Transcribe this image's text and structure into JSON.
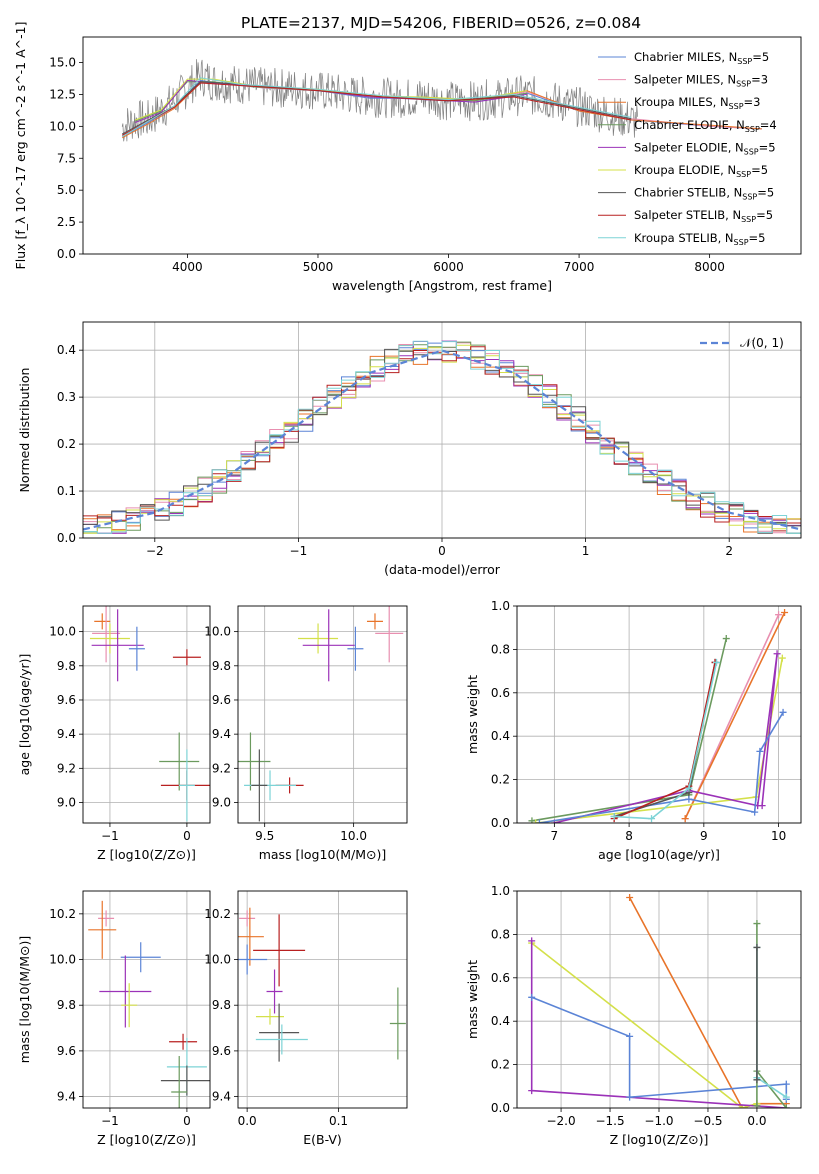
{
  "figure_title": "PLATE=2137, MJD=54206, FIBERID=0526, z=0.084",
  "chart_data": [
    {
      "id": "spectrum",
      "type": "line",
      "title": "PLATE=2137, MJD=54206, FIBERID=0526, z=0.084",
      "xlabel": "wavelength [Angstrom, rest frame]",
      "ylabel": "Flux [f_λ 10^-17 erg cm^-2 s^-1 A^-1]",
      "xlim": [
        3200,
        8700
      ],
      "ylim": [
        0,
        17
      ],
      "xticks": [
        "4000",
        "5000",
        "6000",
        "7000",
        "8000"
      ],
      "yticks": [
        "0.0",
        "2.5",
        "5.0",
        "7.5",
        "10.0",
        "12.5",
        "15.0"
      ],
      "grid": false,
      "legend_position": "top-right",
      "data_series": {
        "name": "data",
        "x": [
          3500,
          3600,
          3700,
          3800,
          3900,
          4000,
          4100,
          4200,
          4400,
          4600,
          4800,
          5000,
          5200,
          5400,
          5600,
          5800,
          6000,
          6200,
          6400,
          6600,
          6800,
          7000,
          7200,
          7400,
          7450
        ],
        "y": [
          10.0,
          10.5,
          10.5,
          11.3,
          12.0,
          13.0,
          14.0,
          13.5,
          13.3,
          13.0,
          13.0,
          12.8,
          12.5,
          12.3,
          12.2,
          12.3,
          12.0,
          12.0,
          12.2,
          12.5,
          12.0,
          11.5,
          11.0,
          10.5,
          10.3
        ]
      },
      "series": [
        {
          "name": "Chabrier MILES, N_SSP=5",
          "color": "#5b84d6",
          "x": [
            3500,
            3700,
            3900,
            4100,
            4300,
            4600,
            5000,
            5400,
            5800,
            6200,
            6600,
            7000,
            7400,
            8000,
            8400
          ],
          "y": [
            9.2,
            10.3,
            11.5,
            13.6,
            13.3,
            13.0,
            12.8,
            12.2,
            12.2,
            11.9,
            12.6,
            11.2,
            10.5,
            10.0,
            9.8
          ]
        },
        {
          "name": "Salpeter MILES, N_SSP=3",
          "color": "#e88fb0",
          "x": [
            3500,
            3700,
            3900,
            4100,
            4300,
            4600,
            5000,
            5400,
            5800,
            6200,
            6600,
            7000,
            7400,
            8000,
            8400
          ],
          "y": [
            9.3,
            10.4,
            11.5,
            13.5,
            13.3,
            13.0,
            12.8,
            12.3,
            12.2,
            12.0,
            12.7,
            11.3,
            10.6,
            10.0,
            9.8
          ]
        },
        {
          "name": "Kroupa MILES, N_SSP=3",
          "color": "#e8742a",
          "x": [
            3500,
            3700,
            3900,
            4100,
            4300,
            4600,
            5000,
            5400,
            5800,
            6200,
            6600,
            7000,
            7400,
            8000,
            8400
          ],
          "y": [
            9.1,
            10.2,
            11.4,
            13.4,
            13.4,
            13.1,
            12.9,
            12.3,
            12.3,
            12.0,
            12.8,
            11.2,
            10.5,
            10.1,
            9.8
          ]
        },
        {
          "name": "Chabrier ELODIE, N_SSP=4",
          "color": "#6b9a5e",
          "x": [
            3600,
            3800,
            4000,
            4200,
            4500,
            5000,
            5400,
            5800,
            6200,
            6600
          ],
          "y": [
            10.4,
            11.2,
            13.5,
            13.5,
            13.1,
            12.8,
            12.3,
            12.2,
            12.0,
            12.6
          ]
        },
        {
          "name": "Salpeter ELODIE, N_SSP=5",
          "color": "#9b32b8",
          "x": [
            3600,
            3800,
            4000,
            4200,
            4500,
            5000,
            5400,
            5800,
            6200,
            6600
          ],
          "y": [
            10.3,
            11.1,
            13.6,
            13.4,
            13.2,
            12.8,
            12.3,
            12.1,
            11.9,
            12.5
          ]
        },
        {
          "name": "Kroupa ELODIE, N_SSP=5",
          "color": "#d4e04a",
          "x": [
            3600,
            3800,
            4000,
            4200,
            4500,
            5000,
            5400,
            5800,
            6200,
            6600
          ],
          "y": [
            10.5,
            11.3,
            13.7,
            13.7,
            13.2,
            12.9,
            12.4,
            12.3,
            12.1,
            12.8
          ]
        },
        {
          "name": "Chabrier STELIB, N_SSP=5",
          "color": "#555555",
          "x": [
            3500,
            3700,
            3900,
            4100,
            4400,
            5000,
            5500,
            6000,
            6500,
            7000,
            7400
          ],
          "y": [
            9.4,
            10.5,
            11.6,
            13.5,
            13.3,
            12.8,
            12.3,
            12.0,
            12.4,
            11.4,
            10.6
          ]
        },
        {
          "name": "Salpeter STELIB, N_SSP=5",
          "color": "#b82020",
          "x": [
            3500,
            3700,
            3900,
            4100,
            4400,
            5000,
            5500,
            6000,
            6500,
            7000,
            7400
          ],
          "y": [
            9.3,
            10.4,
            11.5,
            13.4,
            13.2,
            12.8,
            12.3,
            12.0,
            12.3,
            11.3,
            10.5
          ]
        },
        {
          "name": "Kroupa STELIB, N_SSP=5",
          "color": "#7dd3d6",
          "x": [
            3500,
            3700,
            3900,
            4100,
            4400,
            5000,
            5500,
            6000,
            6500,
            7000,
            7400
          ],
          "y": [
            9.2,
            10.4,
            11.6,
            13.8,
            13.3,
            12.9,
            12.4,
            12.1,
            12.5,
            11.5,
            10.7
          ]
        }
      ]
    },
    {
      "id": "residuals",
      "type": "line",
      "title": "",
      "xlabel": "(data-model)/error",
      "ylabel": "Normed distribution",
      "xlim": [
        -2.5,
        2.5
      ],
      "ylim": [
        0,
        0.46
      ],
      "xticks": [
        "−2",
        "−1",
        "0",
        "1",
        "2"
      ],
      "yticks": [
        "0.0",
        "0.1",
        "0.2",
        "0.3",
        "0.4"
      ],
      "grid": true,
      "legend_position": "top-right",
      "legend": "𝒩(0, 1)",
      "x": [
        -2.5,
        -2.0,
        -1.5,
        -1.0,
        -0.5,
        0.0,
        0.5,
        1.0,
        1.5,
        2.0,
        2.5
      ],
      "y": [
        0.018,
        0.054,
        0.13,
        0.242,
        0.352,
        0.399,
        0.352,
        0.242,
        0.13,
        0.054,
        0.018
      ]
    },
    {
      "id": "age-vs-Z",
      "type": "scatter",
      "xlabel": "Z [log10(Z/Z⊙)]",
      "ylabel": "age [log10(age/yr)]",
      "xlim": [
        -1.35,
        0.3
      ],
      "ylim": [
        8.88,
        10.15
      ],
      "xticks": [
        "−1",
        "0"
      ],
      "yticks": [
        "9.0",
        "9.2",
        "9.4",
        "9.6",
        "9.8",
        "10.0"
      ],
      "grid": true,
      "points": [
        {
          "color": "#e8742a",
          "x": -1.1,
          "y": 10.06
        },
        {
          "color": "#e88fb0",
          "x": -1.05,
          "y": 9.99
        },
        {
          "color": "#d4e04a",
          "x": -1.0,
          "y": 9.96
        },
        {
          "color": "#9b32b8",
          "x": -0.9,
          "y": 9.92
        },
        {
          "color": "#5b84d6",
          "x": -0.65,
          "y": 9.9
        },
        {
          "color": "#b82020",
          "x": 0.0,
          "y": 9.85
        },
        {
          "color": "#6b9a5e",
          "x": -0.1,
          "y": 9.24
        },
        {
          "color": "#b82020",
          "x": 0.0,
          "y": 9.1
        },
        {
          "color": "#7dd3d6",
          "x": 0.0,
          "y": 9.1
        }
      ]
    },
    {
      "id": "age-vs-mass",
      "type": "scatter",
      "xlabel": "mass [log10(M/M⊙)]",
      "ylabel": "",
      "xlim": [
        9.35,
        10.3
      ],
      "ylim": [
        8.88,
        10.15
      ],
      "xticks": [
        "9.5",
        "10.0"
      ],
      "yticks": [
        "9.0",
        "9.2",
        "9.4",
        "9.6",
        "9.8",
        "10.0"
      ],
      "grid": true,
      "points": [
        {
          "color": "#e8742a",
          "x": 10.12,
          "y": 10.06
        },
        {
          "color": "#e88fb0",
          "x": 10.2,
          "y": 9.99
        },
        {
          "color": "#d4e04a",
          "x": 9.8,
          "y": 9.96
        },
        {
          "color": "#9b32b8",
          "x": 9.86,
          "y": 9.92
        },
        {
          "color": "#5b84d6",
          "x": 10.01,
          "y": 9.9
        },
        {
          "color": "#b82020",
          "x": 9.64,
          "y": 9.1
        },
        {
          "color": "#6b9a5e",
          "x": 9.42,
          "y": 9.24
        },
        {
          "color": "#7dd3d6",
          "x": 9.53,
          "y": 9.1
        },
        {
          "color": "#555555",
          "x": 9.47,
          "y": 9.1
        }
      ]
    },
    {
      "id": "massweight-vs-age",
      "type": "line",
      "xlabel": "age [log10(age/yr)]",
      "ylabel": "mass weight",
      "xlim": [
        6.5,
        10.3
      ],
      "ylim": [
        0.0,
        1.0
      ],
      "xticks": [
        "7",
        "8",
        "9",
        "10"
      ],
      "yticks": [
        "0.0",
        "0.2",
        "0.4",
        "0.6",
        "0.8",
        "1.0"
      ],
      "grid": true,
      "series": [
        {
          "color": "#6b9a5e",
          "x": [
            6.7,
            8.8,
            9.3
          ],
          "y": [
            0.01,
            0.13,
            0.85
          ]
        },
        {
          "color": "#e88fb0",
          "x": [
            8.75,
            10.0
          ],
          "y": [
            0.02,
            0.96
          ]
        },
        {
          "color": "#e8742a",
          "x": [
            8.75,
            10.08
          ],
          "y": [
            0.02,
            0.97
          ]
        },
        {
          "color": "#d4e04a",
          "x": [
            6.75,
            9.7,
            10.05
          ],
          "y": [
            0.0,
            0.12,
            0.76
          ]
        },
        {
          "color": "#9b32b8",
          "x": [
            7.0,
            8.8,
            9.72,
            9.98,
            9.78
          ],
          "y": [
            0.0,
            0.15,
            0.08,
            0.78,
            0.08
          ]
        },
        {
          "color": "#5b84d6",
          "x": [
            6.8,
            8.8,
            9.68,
            9.75,
            10.06
          ],
          "y": [
            0.0,
            0.11,
            0.05,
            0.33,
            0.51
          ]
        },
        {
          "color": "#555555",
          "x": [
            7.8,
            8.8,
            9.15
          ],
          "y": [
            0.03,
            0.14,
            0.74
          ]
        },
        {
          "color": "#b82020",
          "x": [
            7.8,
            8.8,
            9.15
          ],
          "y": [
            0.02,
            0.17,
            0.74
          ]
        },
        {
          "color": "#7dd3d6",
          "x": [
            7.8,
            8.3,
            8.8,
            9.17
          ],
          "y": [
            0.03,
            0.02,
            0.16,
            0.74
          ]
        }
      ]
    },
    {
      "id": "mass-vs-Z",
      "type": "scatter",
      "xlabel": "Z [log10(Z/Z⊙)]",
      "ylabel": "mass [log10(M/M⊙)]",
      "xlim": [
        -1.35,
        0.3
      ],
      "ylim": [
        9.35,
        10.3
      ],
      "xticks": [
        "−1",
        "0"
      ],
      "yticks": [
        "9.4",
        "9.6",
        "9.8",
        "10.0",
        "10.2"
      ],
      "grid": true,
      "points": [
        {
          "color": "#e88fb0",
          "x": -1.05,
          "y": 10.18
        },
        {
          "color": "#e8742a",
          "x": -1.1,
          "y": 10.13
        },
        {
          "color": "#5b84d6",
          "x": -0.6,
          "y": 10.01
        },
        {
          "color": "#9b32b8",
          "x": -0.8,
          "y": 9.86
        },
        {
          "color": "#d4e04a",
          "x": -0.75,
          "y": 9.8
        },
        {
          "color": "#b82020",
          "x": -0.05,
          "y": 9.64
        },
        {
          "color": "#7dd3d6",
          "x": 0.0,
          "y": 9.53
        },
        {
          "color": "#555555",
          "x": 0.0,
          "y": 9.47
        },
        {
          "color": "#6b9a5e",
          "x": -0.1,
          "y": 9.42
        }
      ]
    },
    {
      "id": "mass-vs-EBV",
      "type": "scatter",
      "xlabel": "E(B-V)",
      "ylabel": "",
      "xlim": [
        -0.01,
        0.175
      ],
      "ylim": [
        9.35,
        10.3
      ],
      "xticks": [
        "0.0",
        "0.1"
      ],
      "yticks": [
        "9.4",
        "9.6",
        "9.8",
        "10.0",
        "10.2"
      ],
      "grid": true,
      "points": [
        {
          "color": "#e88fb0",
          "x": 0.0,
          "y": 10.18
        },
        {
          "color": "#e8742a",
          "x": 0.003,
          "y": 10.1
        },
        {
          "color": "#5b84d6",
          "x": 0.0,
          "y": 10.0
        },
        {
          "color": "#b82020",
          "x": 0.035,
          "y": 10.04
        },
        {
          "color": "#9b32b8",
          "x": 0.03,
          "y": 9.86
        },
        {
          "color": "#d4e04a",
          "x": 0.025,
          "y": 9.75
        },
        {
          "color": "#555555",
          "x": 0.035,
          "y": 9.68
        },
        {
          "color": "#7dd3d6",
          "x": 0.038,
          "y": 9.65
        },
        {
          "color": "#6b9a5e",
          "x": 0.165,
          "y": 9.72
        }
      ]
    },
    {
      "id": "massweight-vs-Z",
      "type": "line",
      "xlabel": "Z [log10(Z/Z⊙)]",
      "ylabel": "mass weight",
      "xlim": [
        -2.45,
        0.45
      ],
      "ylim": [
        0.0,
        1.0
      ],
      "xticks": [
        "−2.0",
        "−1.5",
        "−1.0",
        "−0.5",
        "0.0"
      ],
      "yticks": [
        "0.0",
        "0.2",
        "0.4",
        "0.6",
        "0.8",
        "1.0"
      ],
      "grid": true,
      "series": [
        {
          "color": "#e8742a",
          "x": [
            -1.3,
            -0.15,
            0.0,
            0.3
          ],
          "y": [
            0.97,
            0.0,
            0.02,
            0.02
          ]
        },
        {
          "color": "#d4e04a",
          "x": [
            -2.3,
            -0.15,
            0.0
          ],
          "y": [
            0.76,
            0.0,
            0.02
          ]
        },
        {
          "color": "#9b32b8",
          "x": [
            -2.3,
            -2.3,
            0.3
          ],
          "y": [
            0.77,
            0.08,
            0.0
          ]
        },
        {
          "color": "#5b84d6",
          "x": [
            -2.3,
            -1.3,
            -1.3,
            0.3,
            0.3
          ],
          "y": [
            0.51,
            0.33,
            0.05,
            0.11,
            0.04
          ]
        },
        {
          "color": "#6b9a5e",
          "x": [
            0.0,
            0.0,
            0.0,
            0.3
          ],
          "y": [
            0.01,
            0.85,
            0.17,
            0.0
          ]
        },
        {
          "color": "#7dd3d6",
          "x": [
            0.0,
            0.0,
            0.3
          ],
          "y": [
            0.74,
            0.14,
            0.05
          ]
        },
        {
          "color": "#555555",
          "x": [
            0.0,
            0.0
          ],
          "y": [
            0.74,
            0.13
          ]
        }
      ]
    }
  ]
}
